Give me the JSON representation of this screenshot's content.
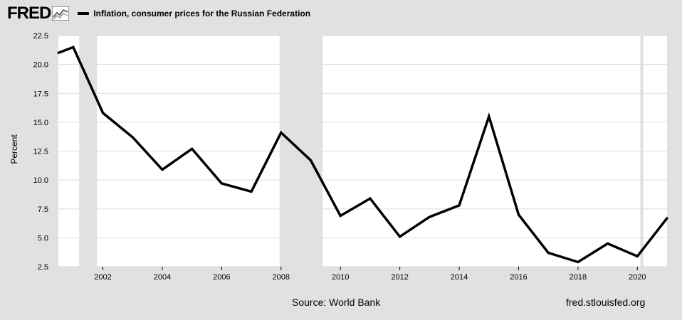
{
  "header": {
    "logo_text": "FRED",
    "series_name": "Inflation, consumer prices for the Russian Federation"
  },
  "footer": {
    "source": "Source: World Bank",
    "url": "fred.stlouisfed.org"
  },
  "colors": {
    "background": "#e1e1e1",
    "plot_background": "#ffffff",
    "recession": "#e1e1e1",
    "line": "#000000",
    "grid": "#dddddd"
  },
  "chart_data": {
    "type": "line",
    "ylabel": "Percent",
    "ylim": [
      2.5,
      22.5
    ],
    "xlim": [
      2000.5,
      2021.0
    ],
    "yticks": [
      "22.5",
      "20.0",
      "17.5",
      "15.0",
      "12.5",
      "10.0",
      "7.5",
      "5.0",
      "2.5"
    ],
    "xticks": [
      "2002",
      "2004",
      "2006",
      "2008",
      "2010",
      "2012",
      "2014",
      "2016",
      "2018",
      "2020"
    ],
    "grid": true,
    "recessions": [
      [
        2001.2,
        2001.8
      ],
      [
        2007.95,
        2009.4
      ],
      [
        2020.1,
        2020.2
      ]
    ],
    "x": [
      2000.5,
      2001,
      2002,
      2003,
      2004,
      2005,
      2006,
      2007,
      2008,
      2009,
      2010,
      2011,
      2012,
      2013,
      2014,
      2015,
      2016,
      2017,
      2018,
      2019,
      2020,
      2021
    ],
    "series": [
      {
        "values": [
          21.0,
          21.5,
          15.8,
          13.7,
          10.9,
          12.7,
          9.7,
          9.0,
          14.1,
          11.7,
          6.9,
          8.4,
          5.1,
          6.8,
          7.8,
          15.5,
          7.0,
          3.7,
          2.9,
          4.5,
          3.4,
          6.7
        ]
      }
    ]
  }
}
